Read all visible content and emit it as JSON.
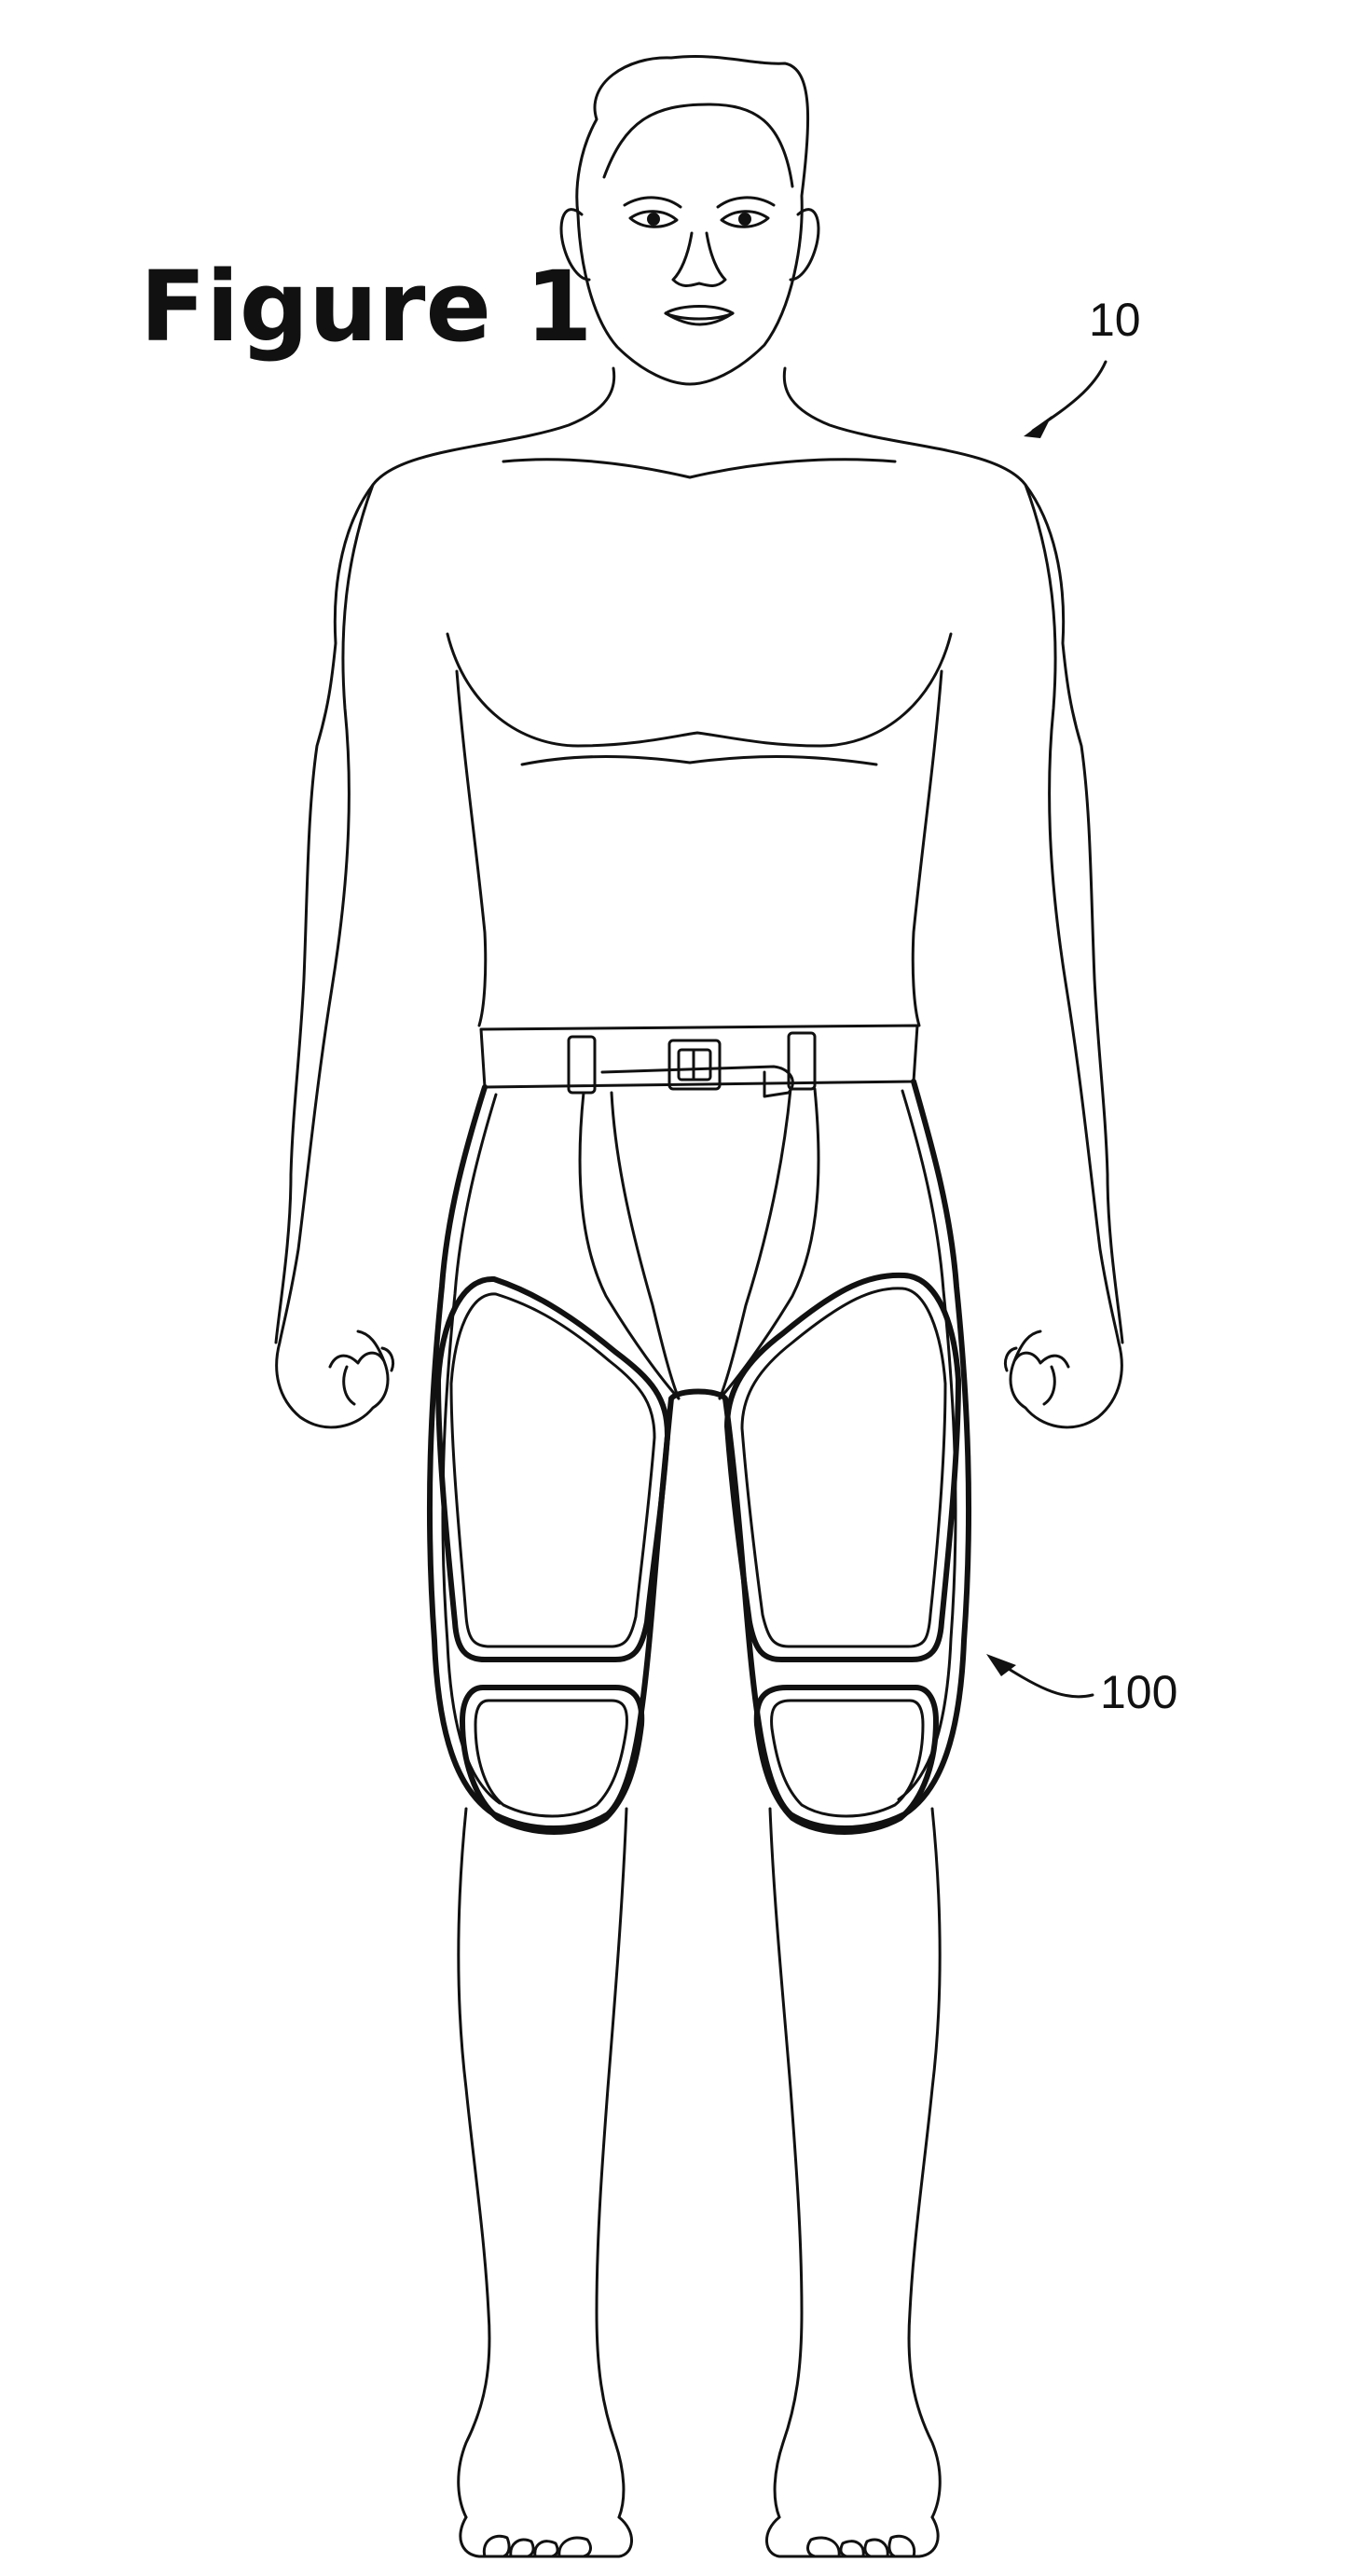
{
  "figure": {
    "title": "Figure 1",
    "labels": {
      "person_ref": "10",
      "garment_ref": "100"
    }
  }
}
